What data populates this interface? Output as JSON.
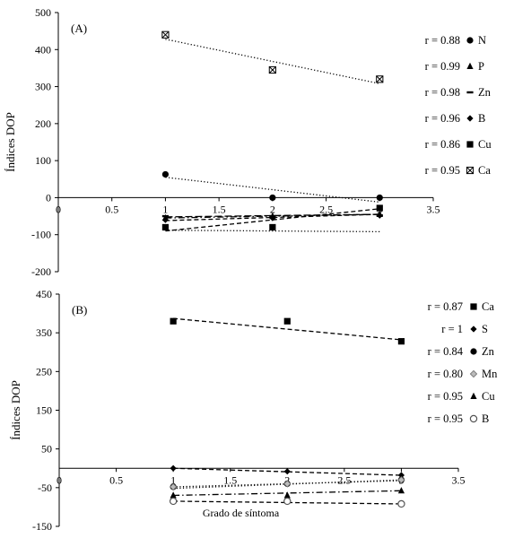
{
  "chart_data": [
    {
      "type": "scatter",
      "panel_label": "(A)",
      "xlabel": "",
      "ylabel": "Índices DOP",
      "xlim": [
        0,
        3.5
      ],
      "ylim": [
        -200,
        500
      ],
      "x_ticks": [
        "0",
        "0.5",
        "1",
        "1.5",
        "2",
        "2.5",
        "3",
        "3.5"
      ],
      "y_ticks": [
        "500",
        "400",
        "300",
        "200",
        "100",
        "0",
        "-100",
        "-200"
      ],
      "legend_position": "right",
      "series": [
        {
          "name": "N",
          "r": "r = 0.88",
          "marker": "circle",
          "line": "dotted",
          "x": [
            1,
            2,
            3
          ],
          "y": [
            63,
            0,
            0
          ],
          "fit": [
            [
              1,
              55
            ],
            [
              3,
              -12
            ]
          ]
        },
        {
          "name": "P",
          "r": "r = 0.99",
          "marker": "triangle",
          "line": "dashdot",
          "x": [
            1,
            2,
            3
          ],
          "y": [
            -55,
            -50,
            -45
          ],
          "fit": [
            [
              1,
              -55
            ],
            [
              3,
              -45
            ]
          ]
        },
        {
          "name": "Zn",
          "r": "r = 0.98",
          "marker": "dash",
          "line": "longdash",
          "x": [
            1,
            2,
            3
          ],
          "y": [
            -50,
            -50,
            -48
          ],
          "fit": [
            [
              1,
              -52
            ],
            [
              3,
              -45
            ]
          ]
        },
        {
          "name": "B",
          "r": "r = 0.96",
          "marker": "diamond",
          "line": "dashed",
          "x": [
            1,
            2,
            3
          ],
          "y": [
            -60,
            -55,
            -48
          ],
          "fit": [
            [
              1,
              -62
            ],
            [
              3,
              -45
            ]
          ]
        },
        {
          "name": "Cu",
          "r": "r = 0.86",
          "marker": "square",
          "line": "dashed",
          "x": [
            1,
            2,
            3
          ],
          "y": [
            -80,
            -80,
            -28
          ],
          "fit": [
            [
              1,
              -90
            ],
            [
              3,
              -30
            ]
          ]
        },
        {
          "name": "Ca",
          "r": "r = 0.95",
          "marker": "square-x",
          "line": "dotted",
          "x": [
            1,
            2,
            3
          ],
          "y": [
            440,
            345,
            320
          ],
          "fit": [
            [
              1,
              428
            ],
            [
              3,
              308
            ]
          ]
        }
      ],
      "extra_lines": [
        {
          "line": "dotted",
          "fit": [
            [
              1,
              -88
            ],
            [
              3,
              -92
            ]
          ]
        }
      ]
    },
    {
      "type": "scatter",
      "panel_label": "(B)",
      "xlabel": "Grado de síntoma",
      "ylabel": "Índices DOP",
      "xlim": [
        0,
        3.5
      ],
      "ylim": [
        -150,
        450
      ],
      "x_ticks": [
        "0",
        "0.5",
        "1",
        "1.5",
        "2",
        "2.5",
        "3",
        "3.5"
      ],
      "y_ticks": [
        "450",
        "350",
        "250",
        "150",
        "50",
        "-50",
        "-150"
      ],
      "legend_position": "right",
      "series": [
        {
          "name": "Ca",
          "r": "r = 0.87",
          "marker": "square",
          "line": "dashed",
          "x": [
            1,
            2,
            3
          ],
          "y": [
            380,
            380,
            328
          ],
          "fit": [
            [
              1,
              387
            ],
            [
              3,
              332
            ]
          ]
        },
        {
          "name": "S",
          "r": "r = 1",
          "marker": "diamond",
          "line": "dashed",
          "x": [
            1,
            2,
            3
          ],
          "y": [
            0,
            -8,
            -18
          ],
          "fit": [
            [
              1,
              0
            ],
            [
              3,
              -18
            ]
          ]
        },
        {
          "name": "Zn",
          "r": "r = 0.84",
          "marker": "circle",
          "line": "dotted",
          "x": [
            1,
            2,
            3
          ],
          "y": [
            -48,
            -40,
            -30
          ],
          "fit": [
            [
              1,
              -52
            ],
            [
              3,
              -30
            ]
          ]
        },
        {
          "name": "Mn",
          "r": "r = 0.80",
          "marker": "diamond-open",
          "line": "dotted",
          "x": [
            1,
            2,
            3
          ],
          "y": [
            -48,
            -40,
            -30
          ],
          "fit": [
            [
              1,
              -48
            ],
            [
              3,
              -32
            ]
          ]
        },
        {
          "name": "Cu",
          "r": "r = 0.95",
          "marker": "triangle",
          "line": "dashdot",
          "x": [
            1,
            2,
            3
          ],
          "y": [
            -70,
            -70,
            -58
          ],
          "fit": [
            [
              1,
              -70
            ],
            [
              3,
              -58
            ]
          ]
        },
        {
          "name": "B",
          "r": "r = 0.95",
          "marker": "circle-open",
          "line": "dashed",
          "x": [
            1,
            2,
            3
          ],
          "y": [
            -85,
            -85,
            -92
          ],
          "fit": [
            [
              1,
              -85
            ],
            [
              3,
              -92
            ]
          ]
        }
      ]
    }
  ]
}
